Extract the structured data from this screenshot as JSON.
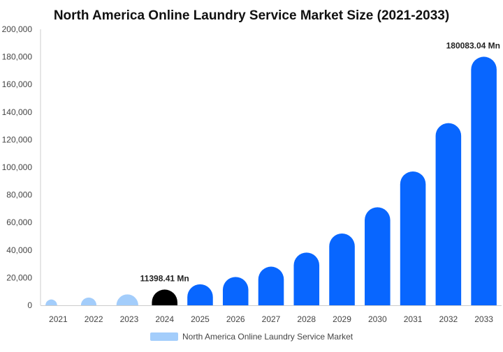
{
  "chart_data": {
    "type": "bar",
    "title": "North America Online Laundry Service Market Size (2021-2033)",
    "xlabel": "",
    "ylabel": "",
    "categories": [
      "2021",
      "2022",
      "2023",
      "2024",
      "2025",
      "2026",
      "2027",
      "2028",
      "2029",
      "2030",
      "2031",
      "2032",
      "2033"
    ],
    "series": [
      {
        "name": "North America Online Laundry Service Market",
        "values": [
          4200,
          5600,
          7900,
          11398.41,
          15200,
          20500,
          28000,
          38200,
          52000,
          71000,
          97000,
          132000,
          180083.04
        ]
      }
    ],
    "ylim": [
      0,
      200000
    ],
    "yticks": [
      0,
      20000,
      40000,
      60000,
      80000,
      100000,
      120000,
      140000,
      160000,
      180000,
      200000
    ],
    "ytick_labels": [
      "0",
      "20,000",
      "40,000",
      "60,000",
      "80,000",
      "100,000",
      "120,000",
      "140,000",
      "160,000",
      "180,000",
      "200,000"
    ],
    "grid": false,
    "legend": "bottom",
    "annotations": [
      {
        "category": "2024",
        "text": "11398.41 Mn"
      },
      {
        "category": "2033",
        "text": "180083.04 Mn"
      }
    ],
    "colors": {
      "historical": "#a3cdfb",
      "base_year": "#000000",
      "forecast": "#0866ff",
      "legend_swatch": "#a3cdfb",
      "axis": "#cccccc"
    },
    "color_roles": [
      "historical",
      "historical",
      "historical",
      "base_year",
      "forecast",
      "forecast",
      "forecast",
      "forecast",
      "forecast",
      "forecast",
      "forecast",
      "forecast",
      "forecast"
    ]
  }
}
